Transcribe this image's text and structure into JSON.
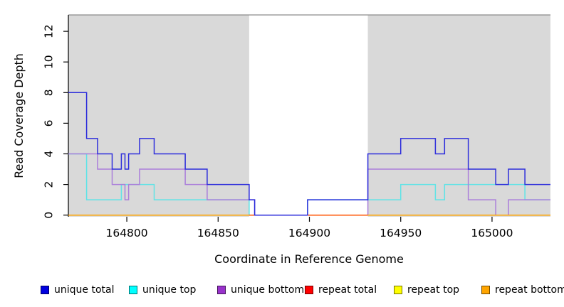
{
  "chart_data": {
    "type": "line",
    "subtype": "step-coverage",
    "title": "",
    "xlabel": "Coordinate in Reference Genome",
    "ylabel": "Read Coverage Depth",
    "xlim": [
      164768,
      165032
    ],
    "ylim": [
      0,
      13.1
    ],
    "x_ticks": [
      164800,
      164850,
      164900,
      164950,
      165000
    ],
    "y_ticks": [
      0,
      2,
      4,
      6,
      8,
      10,
      12
    ],
    "grid": false,
    "legend_position": "bottom",
    "background_shading": {
      "color": "#d9d9d9",
      "regions": [
        [
          164768,
          164867
        ],
        [
          164932,
          165032
        ]
      ],
      "gap": [
        164867,
        164932
      ]
    },
    "series": [
      {
        "key": "unique_total",
        "name": "unique total",
        "swatch_color": "#0000e0",
        "line_color": "#2d2ddb",
        "steps": [
          [
            164768,
            8
          ],
          [
            164778,
            5
          ],
          [
            164784,
            4
          ],
          [
            164792,
            3
          ],
          [
            164797,
            4
          ],
          [
            164799,
            3
          ],
          [
            164801,
            4
          ],
          [
            164807,
            5
          ],
          [
            164815,
            4
          ],
          [
            164832,
            3
          ],
          [
            164844,
            2
          ],
          [
            164867,
            1
          ],
          [
            164870,
            0
          ],
          [
            164899,
            1
          ],
          [
            164932,
            4
          ],
          [
            164950,
            5
          ],
          [
            164969,
            4
          ],
          [
            164974,
            5
          ],
          [
            164987,
            3
          ],
          [
            165002,
            2
          ],
          [
            165009,
            3
          ],
          [
            165018,
            2
          ]
        ]
      },
      {
        "key": "unique_top",
        "name": "unique top",
        "swatch_color": "#00ffff",
        "line_color": "#5fe3e6",
        "steps": [
          [
            164768,
            4
          ],
          [
            164778,
            1
          ],
          [
            164797,
            2
          ],
          [
            164815,
            1
          ],
          [
            164867,
            0
          ],
          [
            164899,
            1
          ],
          [
            164950,
            2
          ],
          [
            164969,
            1
          ],
          [
            164974,
            2
          ],
          [
            165018,
            1
          ]
        ]
      },
      {
        "key": "unique_bottom",
        "name": "unique bottom",
        "swatch_color": "#9932cc",
        "line_color": "#aa7eda",
        "steps": [
          [
            164768,
            4
          ],
          [
            164784,
            3
          ],
          [
            164792,
            2
          ],
          [
            164799,
            1
          ],
          [
            164801,
            2
          ],
          [
            164807,
            3
          ],
          [
            164832,
            2
          ],
          [
            164844,
            1
          ],
          [
            164870,
            0
          ],
          [
            164932,
            3
          ],
          [
            164987,
            1
          ],
          [
            165002,
            0
          ],
          [
            165009,
            1
          ]
        ]
      },
      {
        "key": "repeat_total",
        "name": "repeat total",
        "swatch_color": "#ff0000",
        "line_color": "#ff0000",
        "steps": [
          [
            164768,
            0
          ]
        ]
      },
      {
        "key": "repeat_top",
        "name": "repeat top",
        "swatch_color": "#ffff00",
        "line_color": "#ffe100",
        "steps": [
          [
            164768,
            0
          ]
        ]
      },
      {
        "key": "repeat_bottom",
        "name": "repeat bottom",
        "swatch_color": "#ffa500",
        "line_color": "#ffa500",
        "steps": [
          [
            164768,
            0
          ]
        ]
      }
    ]
  }
}
